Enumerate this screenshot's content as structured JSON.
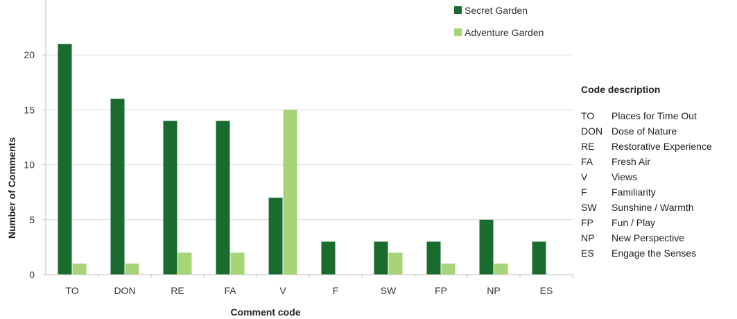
{
  "chart_data": {
    "type": "bar",
    "xlabel": "Comment code",
    "ylabel": "Number of Comments",
    "ylim": [
      0,
      25
    ],
    "yticks": [
      0,
      5,
      10,
      15,
      20
    ],
    "grid": true,
    "legend_position": "top-right",
    "categories": [
      "TO",
      "DON",
      "RE",
      "FA",
      "V",
      "F",
      "SW",
      "FP",
      "NP",
      "ES"
    ],
    "series": [
      {
        "name": "Secret Garden",
        "color": "#1a6b2e",
        "values": [
          21,
          16,
          14,
          14,
          7,
          3,
          3,
          3,
          5,
          3
        ]
      },
      {
        "name": "Adventure Garden",
        "color": "#a6d477",
        "values": [
          1,
          1,
          2,
          2,
          15,
          0,
          2,
          1,
          1,
          0
        ]
      }
    ]
  },
  "code_description": {
    "title": "Code description",
    "items": [
      {
        "code": "TO",
        "text": "Places for Time Out"
      },
      {
        "code": "DON",
        "text": "Dose of Nature"
      },
      {
        "code": "RE",
        "text": "Restorative Experience"
      },
      {
        "code": "FA",
        "text": "Fresh Air"
      },
      {
        "code": "V",
        "text": "Views"
      },
      {
        "code": "F",
        "text": "Familiarity"
      },
      {
        "code": "SW",
        "text": "Sunshine / Warmth"
      },
      {
        "code": "FP",
        "text": "Fun / Play"
      },
      {
        "code": "NP",
        "text": "New Perspective"
      },
      {
        "code": "ES",
        "text": "Engage the Senses"
      }
    ]
  }
}
